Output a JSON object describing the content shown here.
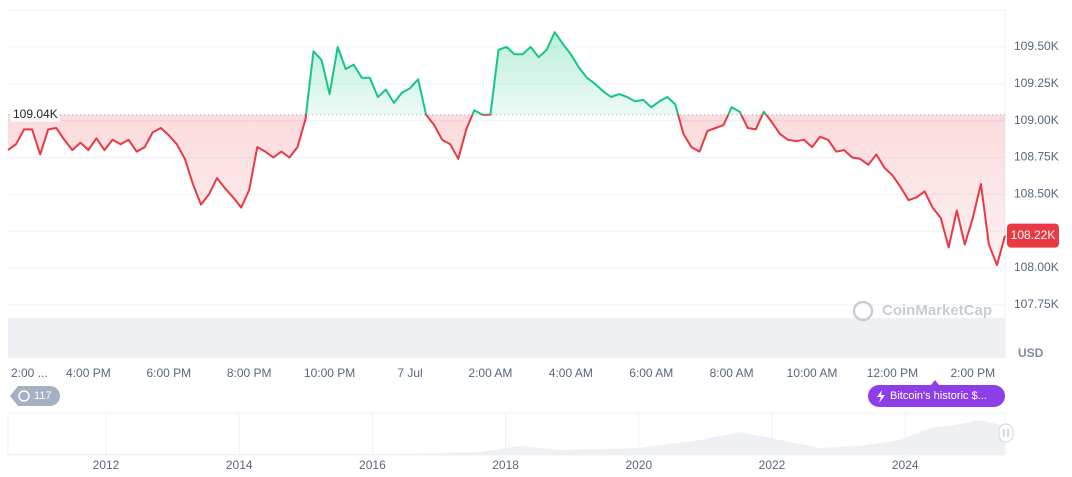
{
  "chart_data": {
    "type": "line",
    "x": [
      14,
      14.2,
      14.4,
      14.6,
      14.8,
      15,
      15.2,
      15.4,
      15.6,
      15.8,
      16,
      16.2,
      16.4,
      16.6,
      16.8,
      17,
      17.2,
      17.4,
      17.6,
      17.8,
      18,
      18.2,
      18.4,
      18.6,
      18.8,
      19,
      19.2,
      19.4,
      19.6,
      19.8,
      20,
      20.2,
      20.4,
      20.6,
      20.8,
      21,
      21.2,
      21.4,
      21.6,
      21.8,
      22,
      22.2,
      22.4,
      22.6,
      22.8,
      23,
      23.2,
      23.4,
      23.6,
      23.8,
      24,
      24.2,
      24.4,
      24.6,
      24.8,
      25,
      25.2,
      25.4,
      25.6,
      25.8,
      26,
      26.2,
      26.4,
      26.6,
      26.8,
      27,
      27.2,
      27.4,
      27.6,
      27.8,
      28,
      28.2,
      28.4,
      28.6,
      28.8,
      29,
      29.2,
      29.4,
      29.6,
      29.8,
      30,
      30.2,
      30.4,
      30.6,
      30.8,
      31,
      31.2,
      31.4,
      31.6,
      31.8,
      32,
      32.2,
      32.4,
      32.6,
      32.8,
      33,
      33.2,
      33.4,
      33.6,
      33.8,
      34,
      34.2,
      34.4,
      34.6,
      34.8,
      35,
      35.2,
      35.4,
      35.6,
      35.8,
      36,
      36.2,
      36.4,
      36.6,
      36.8,
      37,
      37.2,
      37.4,
      37.6,
      37.8,
      38,
      38.2,
      38.4,
      38.6,
      38.8
    ],
    "values": [
      108800,
      108840,
      108940,
      108940,
      108770,
      108940,
      108950,
      108870,
      108800,
      108850,
      108800,
      108880,
      108800,
      108870,
      108840,
      108870,
      108790,
      108820,
      108920,
      108950,
      108900,
      108840,
      108740,
      108570,
      108430,
      108500,
      108610,
      108540,
      108480,
      108410,
      108530,
      108820,
      108790,
      108750,
      108790,
      108750,
      108820,
      109010,
      109470,
      109410,
      109180,
      109500,
      109350,
      109380,
      109290,
      109290,
      109160,
      109210,
      109120,
      109190,
      109220,
      109280,
      109040,
      108970,
      108870,
      108840,
      108740,
      108940,
      109070,
      109040,
      109040,
      109480,
      109500,
      109450,
      109450,
      109500,
      109430,
      109480,
      109600,
      109520,
      109450,
      109360,
      109290,
      109250,
      109200,
      109160,
      109180,
      109160,
      109130,
      109140,
      109090,
      109130,
      109160,
      109110,
      108910,
      108820,
      108790,
      108930,
      108950,
      108970,
      109090,
      109060,
      108950,
      108940,
      109060,
      108990,
      108910,
      108870,
      108860,
      108870,
      108820,
      108890,
      108870,
      108790,
      108800,
      108750,
      108740,
      108700,
      108770,
      108680,
      108630,
      108550,
      108460,
      108480,
      108520,
      108410,
      108340,
      108140,
      108390,
      108160,
      108340,
      108570,
      108160,
      108020,
      108220
    ],
    "colors": {
      "above": "#16c784",
      "below": "#ea3943"
    },
    "xlim": [
      14,
      38.8
    ],
    "xticks": [
      {
        "value": 14,
        "label": "2:00 ..."
      },
      {
        "value": 16,
        "label": "4:00 PM"
      },
      {
        "value": 18,
        "label": "6:00 PM"
      },
      {
        "value": 20,
        "label": "8:00 PM"
      },
      {
        "value": 22,
        "label": "10:00 PM"
      },
      {
        "value": 24,
        "label": "7 Jul"
      },
      {
        "value": 26,
        "label": "2:00 AM"
      },
      {
        "value": 28,
        "label": "4:00 AM"
      },
      {
        "value": 30,
        "label": "6:00 AM"
      },
      {
        "value": 32,
        "label": "8:00 AM"
      },
      {
        "value": 34,
        "label": "10:00 AM"
      },
      {
        "value": 36,
        "label": "12:00 PM"
      },
      {
        "value": 38,
        "label": "2:00 PM"
      }
    ],
    "ylim": [
      107390,
      109750
    ],
    "yticks": [
      {
        "value": 107750,
        "label": "107.75K"
      },
      {
        "value": 108000,
        "label": "108.00K"
      },
      {
        "value": 108250,
        "label": "108.25K"
      },
      {
        "value": 108500,
        "label": "108.50K"
      },
      {
        "value": 108750,
        "label": "108.75K"
      },
      {
        "value": 109000,
        "label": "109.00K"
      },
      {
        "value": 109250,
        "label": "109.25K"
      },
      {
        "value": 109500,
        "label": "109.50K"
      }
    ],
    "grid": true,
    "y_unit": "USD",
    "baseline": {
      "value": 109040,
      "label": "109.04K"
    },
    "last_price": {
      "value": 108220,
      "label": "108.22K"
    },
    "watermark": "CoinMarketCap"
  },
  "navigator": {
    "years": [
      "2012",
      "2014",
      "2016",
      "2018",
      "2020",
      "2022",
      "2024"
    ]
  },
  "badges": {
    "count": 117,
    "news": "Bitcoin's historic $..."
  }
}
